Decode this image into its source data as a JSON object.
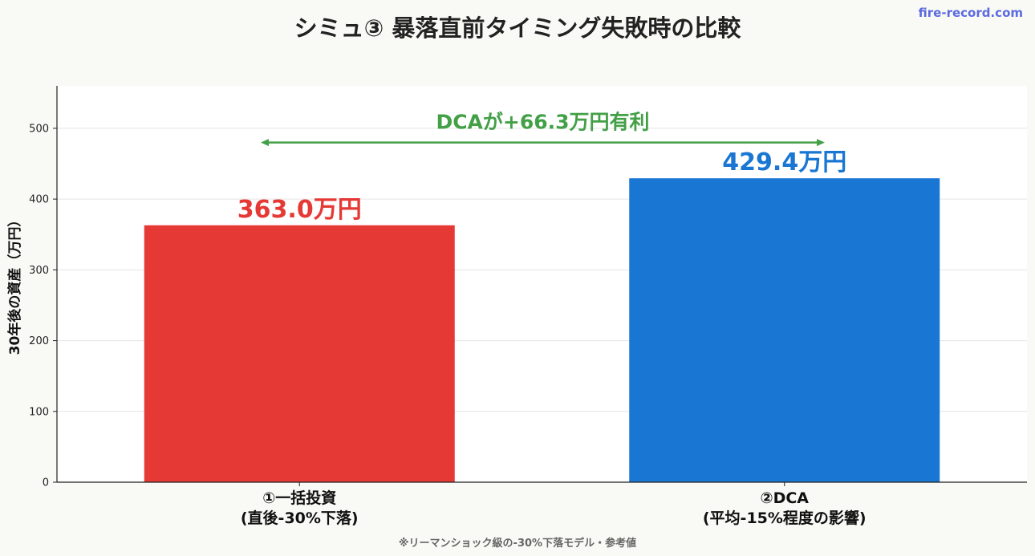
{
  "header": {
    "title": "シミュ③ 暴落直前タイミング失敗時の比較",
    "brand": "fire-record.com"
  },
  "footer_note": "※リーマンショック級の-30%下落モデル・参考値",
  "chart_data": {
    "type": "bar",
    "title": "シミュ③ 暴落直前タイミング失敗時の比較",
    "ylabel": "30年後の資産（万円）",
    "xlabel": "",
    "ylim": [
      0,
      560
    ],
    "yticks": [
      0,
      100,
      200,
      300,
      400,
      500
    ],
    "grid": true,
    "categories": [
      [
        "①一括投資",
        "(直後-30%下落)"
      ],
      [
        "②DCA",
        "(平均-15%程度の影響)"
      ]
    ],
    "values": [
      363.0,
      429.4
    ],
    "value_labels": [
      "363.0万円",
      "429.4万円"
    ],
    "colors": [
      "#e53935",
      "#1976d2"
    ],
    "annotation": {
      "text": "DCAが+66.3万円有利",
      "color": "#43a047",
      "arrow_y": 480
    }
  }
}
